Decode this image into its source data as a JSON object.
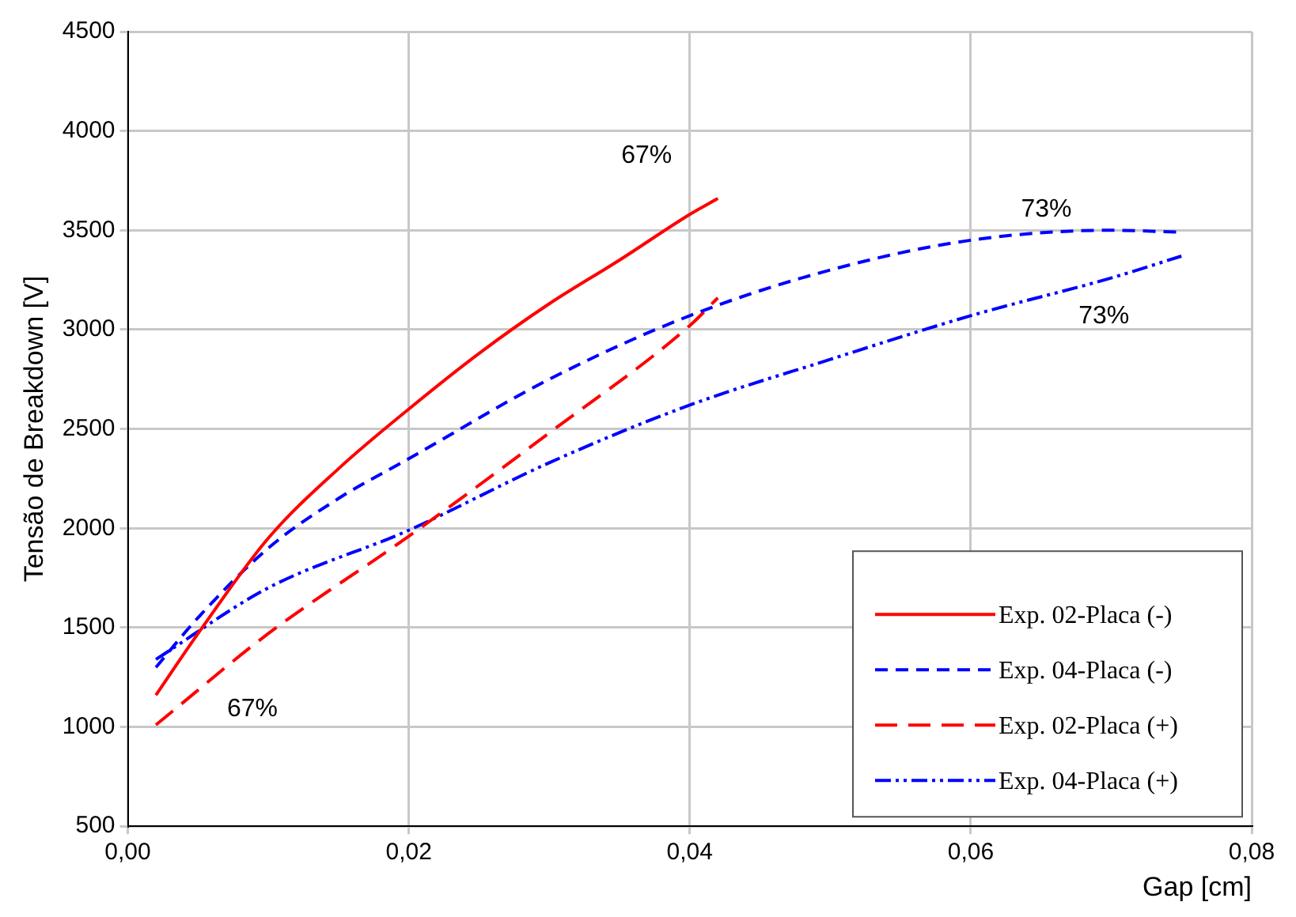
{
  "chart_data": {
    "type": "line",
    "xlabel": "Gap [cm]",
    "ylabel": "Tensão de Breakdown [V]",
    "xlim": [
      0,
      0.08
    ],
    "xticks": [
      {
        "value": 0,
        "label": "0,00"
      },
      {
        "value": 0.02,
        "label": "0,02"
      },
      {
        "value": 0.04,
        "label": "0,04"
      },
      {
        "value": 0.06,
        "label": "0,06"
      },
      {
        "value": 0.08,
        "label": "0,08"
      }
    ],
    "ylim": [
      500,
      4500
    ],
    "yticks": [
      500,
      1000,
      1500,
      2000,
      2500,
      3000,
      3500,
      4000,
      4500
    ],
    "grid": true,
    "legend": "bottom right",
    "marker": "none",
    "series": [
      {
        "name": "Exp. 02-Placa (-)",
        "color": "#ff0000",
        "line_style": "solid",
        "x": [
          0.002,
          0.005,
          0.01,
          0.015,
          0.02,
          0.025,
          0.03,
          0.035,
          0.04,
          0.042
        ],
        "values": [
          1160,
          1470,
          1950,
          2300,
          2600,
          2880,
          3130,
          3350,
          3580,
          3660
        ]
      },
      {
        "name": "Exp. 04-Placa (-)",
        "color": "#0000ff",
        "line_style": "dashed",
        "x": [
          0.002,
          0.005,
          0.01,
          0.015,
          0.02,
          0.03,
          0.04,
          0.05,
          0.06,
          0.07,
          0.075
        ],
        "values": [
          1300,
          1550,
          1900,
          2150,
          2350,
          2750,
          3070,
          3300,
          3450,
          3500,
          3490
        ]
      },
      {
        "name": "Exp. 02-Placa (+)",
        "color": "#ff0000",
        "line_style": "dashed",
        "x": [
          0.002,
          0.01,
          0.02,
          0.03,
          0.04,
          0.042
        ],
        "values": [
          1010,
          1470,
          1960,
          2480,
          3020,
          3160
        ]
      },
      {
        "name": "Exp. 04-Placa (+)",
        "color": "#0000ff",
        "line_style": "dotted",
        "x": [
          0.002,
          0.01,
          0.02,
          0.03,
          0.04,
          0.05,
          0.06,
          0.07,
          0.075
        ],
        "values": [
          1340,
          1700,
          1990,
          2330,
          2620,
          2850,
          3070,
          3260,
          3370
        ]
      }
    ],
    "annotations": [
      {
        "text": "67%",
        "x": 0.042,
        "y": 3660
      },
      {
        "text": "67%",
        "x": 0.002,
        "y": 1010
      },
      {
        "text": "73%",
        "x": 0.07,
        "y": 3500
      },
      {
        "text": "73%",
        "x": 0.075,
        "y": 3370
      }
    ]
  }
}
